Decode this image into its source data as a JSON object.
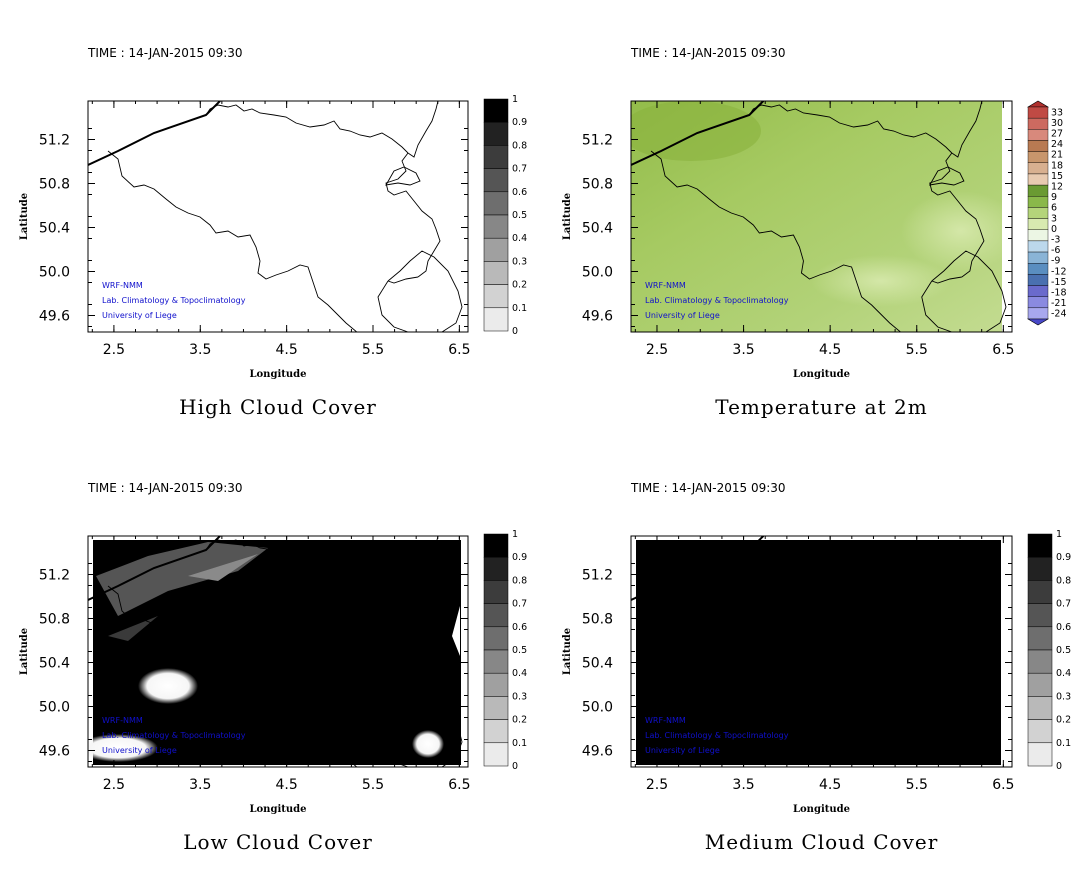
{
  "time_label": "TIME : 14-JAN-2015 09:30",
  "x_axis_label": "Longitude",
  "y_axis_label": "Latitude",
  "x_ticks": [
    "2.5",
    "3.5",
    "4.5",
    "5.5",
    "6.5"
  ],
  "y_ticks": [
    "51.2",
    "50.8",
    "50.4",
    "50.0",
    "49.6"
  ],
  "credits": [
    "WRF-NMM",
    "Lab. Climatology & Topoclimatology",
    "University of Liege"
  ],
  "panels": [
    {
      "id": "high-cloud",
      "title": "High Cloud Cover",
      "field": "high"
    },
    {
      "id": "temperature",
      "title": "Temperature at 2m",
      "field": "temp"
    },
    {
      "id": "low-cloud",
      "title": "Low Cloud Cover",
      "field": "low"
    },
    {
      "id": "medium-cloud",
      "title": "Medium Cloud Cover",
      "field": "medium"
    }
  ],
  "cloud_colorbar": {
    "labels": [
      "1",
      "0.9",
      "0.8",
      "0.7",
      "0.6",
      "0.5",
      "0.4",
      "0.3",
      "0.2",
      "0.1",
      "0"
    ],
    "colors": [
      "#000000",
      "#222222",
      "#3c3c3c",
      "#555555",
      "#6e6e6e",
      "#878787",
      "#a0a0a0",
      "#b9b9b9",
      "#d2d2d2",
      "#ebebeb"
    ]
  },
  "temperature_colorbar": {
    "labels": [
      "33",
      "30",
      "27",
      "24",
      "21",
      "18",
      "15",
      "12",
      "9",
      "6",
      "3",
      "0",
      "-3",
      "-6",
      "-9",
      "-12",
      "-15",
      "-18",
      "-21",
      "-24"
    ],
    "colors": [
      "#b0302e",
      "#c04a44",
      "#cc6a60",
      "#d8897c",
      "#b87a52",
      "#c8966c",
      "#d8b090",
      "#e8cab0",
      "#6a9a32",
      "#8ab84a",
      "#b4d47a",
      "#d8eab0",
      "#ecf6e4",
      "#bcd8ec",
      "#8ab4d6",
      "#5a8ec0",
      "#4a70b0",
      "#6a6acc",
      "#8a8ae0",
      "#a8a8ee",
      "#4848c8"
    ]
  },
  "map_bounds": {
    "lon_min": 2.2,
    "lon_max": 6.6,
    "lat_min": 49.45,
    "lat_max": 51.55
  }
}
